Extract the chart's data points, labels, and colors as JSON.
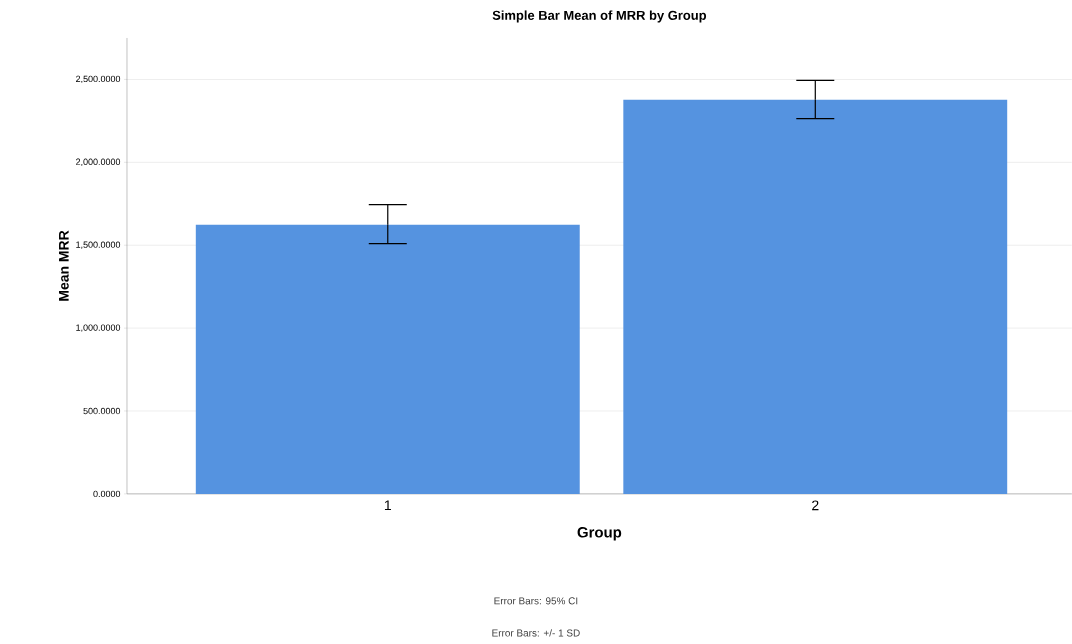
{
  "chart_data": {
    "type": "bar",
    "title": "Simple Bar Mean of MRR by Group",
    "xlabel": "Group",
    "ylabel": "Mean MRR",
    "categories": [
      "1",
      "2"
    ],
    "values": [
      1623,
      2377
    ],
    "color": "#5593e0",
    "errors": [
      [
        1510,
        1745
      ],
      [
        2264,
        2494
      ]
    ],
    "ylim": [
      0,
      2750
    ],
    "yticks": [
      {
        "value": 0,
        "label": "0.0000"
      },
      {
        "value": 500,
        "label": "500.0000"
      },
      {
        "value": 1000,
        "label": "1,000.0000"
      },
      {
        "value": 1500,
        "label": "1,500.0000"
      },
      {
        "value": 2000,
        "label": "2,000.0000"
      },
      {
        "value": 2500,
        "label": "2,500.0000"
      }
    ],
    "grid": "y",
    "annotations": [
      "Error Bars: 95% CI",
      "Error Bars: +/- 1 SD"
    ]
  }
}
